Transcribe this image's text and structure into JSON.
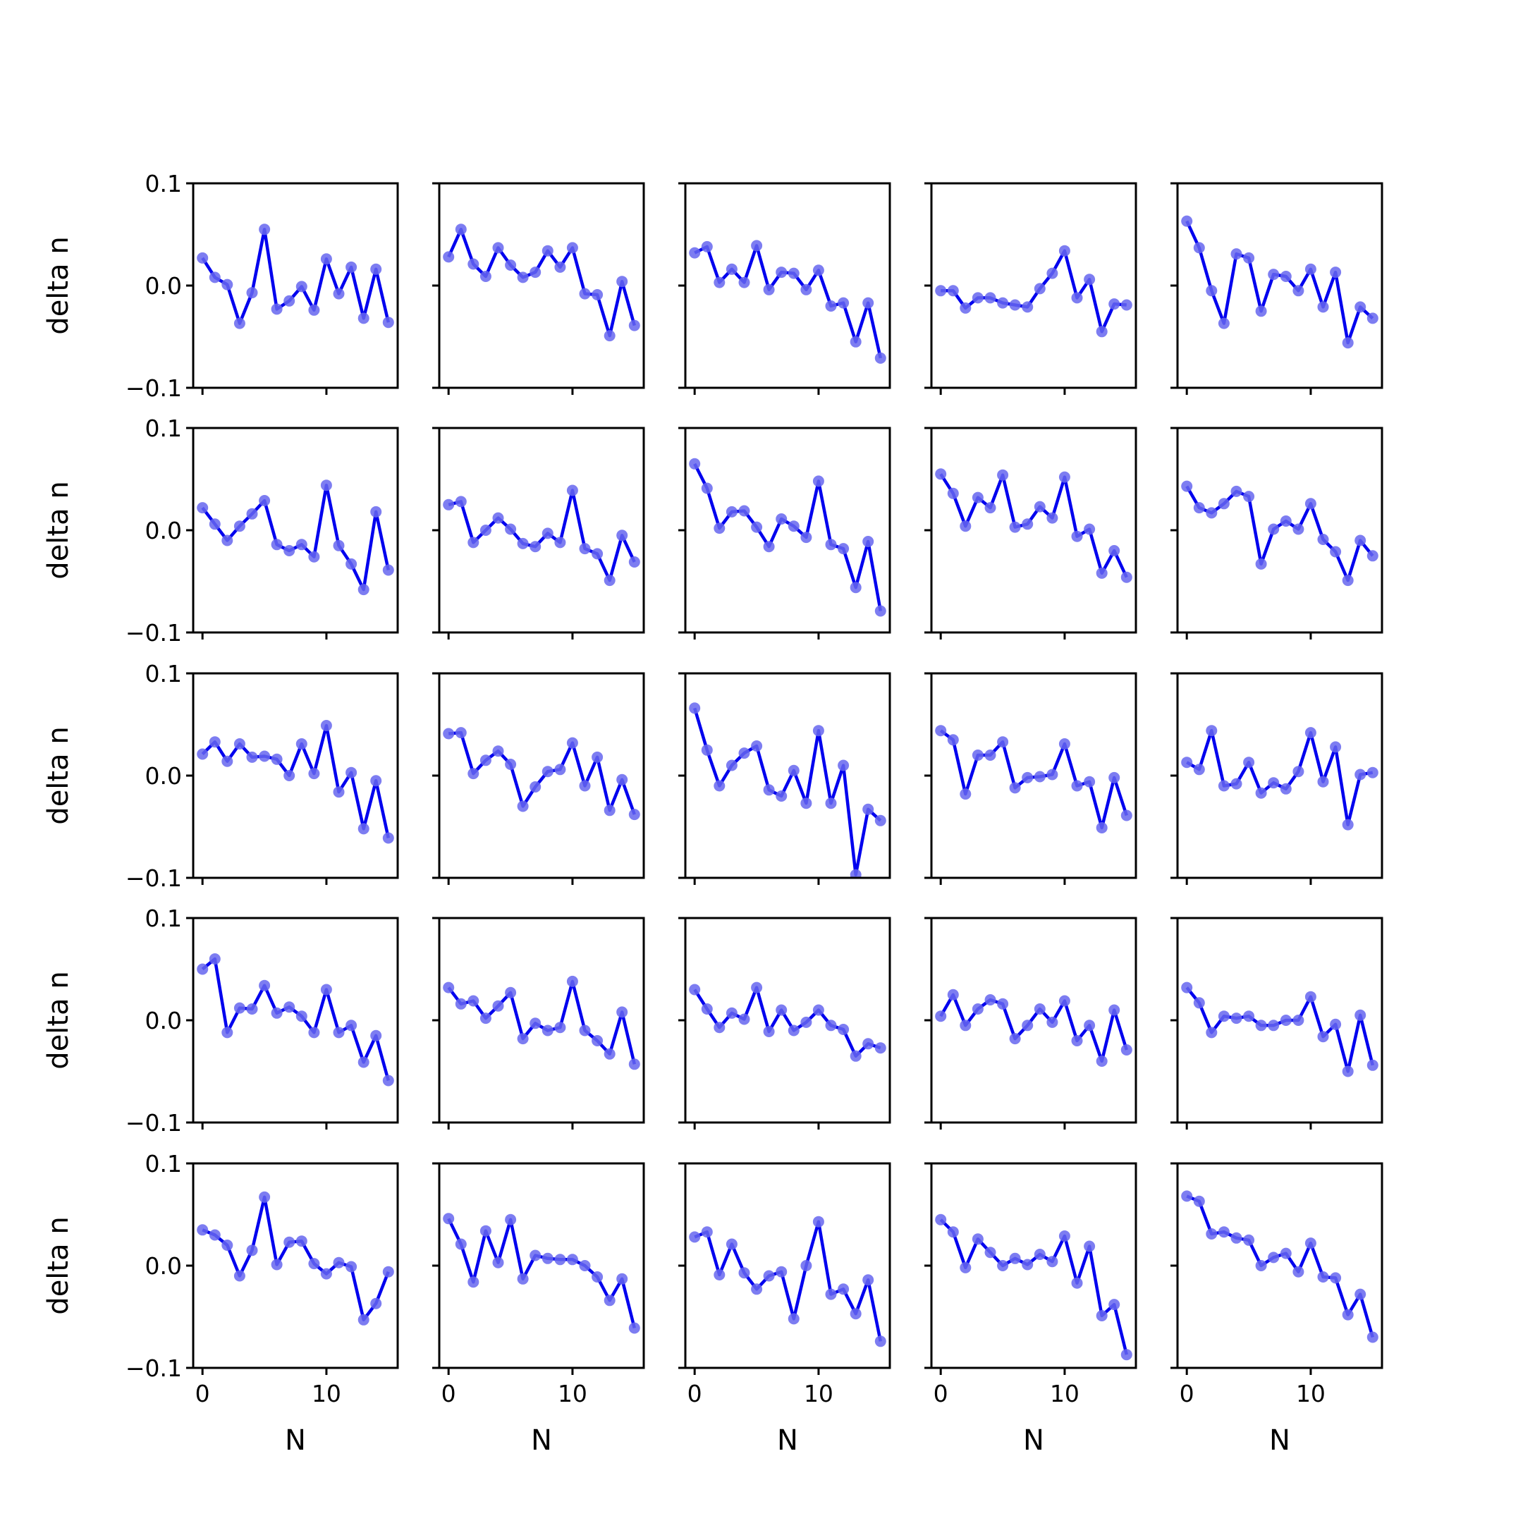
{
  "chart_data": {
    "type": "line",
    "layout": {
      "rows": 5,
      "cols": 5,
      "sharex": true,
      "sharey": true
    },
    "xlabel": "N",
    "ylabel": "delta n",
    "xlim": [
      -0.75,
      15.75
    ],
    "ylim": [
      -0.1,
      0.1
    ],
    "xticks": [
      0,
      10
    ],
    "xtick_labels": [
      "0",
      "10"
    ],
    "yticks": [
      -0.1,
      0.0,
      0.1
    ],
    "ytick_labels": [
      "−0.1",
      "0.0",
      "0.1"
    ],
    "x": [
      0,
      1,
      2,
      3,
      4,
      5,
      6,
      7,
      8,
      9,
      10,
      11,
      12,
      13,
      14,
      15
    ],
    "colors": {
      "line": "#0000ee",
      "marker": "#6666ee"
    },
    "panels": [
      [
        0.027,
        0.008,
        0.001,
        -0.037,
        -0.007,
        0.055,
        -0.023,
        -0.015,
        -0.001,
        -0.024,
        0.026,
        -0.008,
        0.018,
        -0.032,
        0.016,
        -0.036
      ],
      [
        0.028,
        0.055,
        0.021,
        0.009,
        0.037,
        0.02,
        0.008,
        0.013,
        0.034,
        0.018,
        0.037,
        -0.008,
        -0.009,
        -0.049,
        0.004,
        -0.039
      ],
      [
        0.032,
        0.038,
        0.003,
        0.016,
        0.003,
        0.039,
        -0.004,
        0.013,
        0.012,
        -0.004,
        0.015,
        -0.02,
        -0.017,
        -0.055,
        -0.017,
        -0.071
      ],
      [
        -0.005,
        -0.005,
        -0.022,
        -0.012,
        -0.012,
        -0.017,
        -0.019,
        -0.021,
        -0.003,
        0.012,
        0.034,
        -0.012,
        0.006,
        -0.045,
        -0.018,
        -0.019
      ],
      [
        0.063,
        0.037,
        -0.005,
        -0.037,
        0.031,
        0.027,
        -0.025,
        0.011,
        0.009,
        -0.005,
        0.016,
        -0.021,
        0.013,
        -0.056,
        -0.021,
        -0.032
      ],
      [
        0.022,
        0.006,
        -0.01,
        0.004,
        0.016,
        0.029,
        -0.014,
        -0.02,
        -0.014,
        -0.026,
        0.044,
        -0.015,
        -0.033,
        -0.058,
        0.018,
        -0.039
      ],
      [
        0.025,
        0.028,
        -0.012,
        0.0,
        0.012,
        0.001,
        -0.013,
        -0.016,
        -0.003,
        -0.012,
        0.039,
        -0.018,
        -0.023,
        -0.049,
        -0.005,
        -0.031
      ],
      [
        0.065,
        0.041,
        0.002,
        0.018,
        0.019,
        0.003,
        -0.016,
        0.011,
        0.004,
        -0.007,
        0.048,
        -0.014,
        -0.018,
        -0.056,
        -0.011,
        -0.079
      ],
      [
        0.055,
        0.036,
        0.004,
        0.032,
        0.022,
        0.054,
        0.003,
        0.006,
        0.023,
        0.012,
        0.052,
        -0.006,
        0.001,
        -0.042,
        -0.02,
        -0.046
      ],
      [
        0.043,
        0.022,
        0.017,
        0.026,
        0.038,
        0.033,
        -0.033,
        0.001,
        0.009,
        0.001,
        0.026,
        -0.009,
        -0.021,
        -0.049,
        -0.01,
        -0.025
      ],
      [
        0.021,
        0.033,
        0.014,
        0.031,
        0.018,
        0.019,
        0.016,
        0.0,
        0.031,
        0.002,
        0.049,
        -0.016,
        0.003,
        -0.052,
        -0.005,
        -0.061
      ],
      [
        0.041,
        0.042,
        0.002,
        0.015,
        0.024,
        0.011,
        -0.03,
        -0.011,
        0.004,
        0.006,
        0.032,
        -0.01,
        0.018,
        -0.034,
        -0.004,
        -0.038
      ],
      [
        0.066,
        0.025,
        -0.01,
        0.01,
        0.022,
        0.029,
        -0.014,
        -0.02,
        0.005,
        -0.027,
        0.044,
        -0.027,
        0.01,
        -0.097,
        -0.033,
        -0.044
      ],
      [
        0.044,
        0.035,
        -0.018,
        0.02,
        0.02,
        0.033,
        -0.012,
        -0.002,
        -0.001,
        0.001,
        0.031,
        -0.01,
        -0.006,
        -0.051,
        -0.002,
        -0.039
      ],
      [
        0.013,
        0.006,
        0.044,
        -0.01,
        -0.008,
        0.013,
        -0.017,
        -0.007,
        -0.013,
        0.004,
        0.042,
        -0.006,
        0.028,
        -0.048,
        0.001,
        0.003
      ],
      [
        0.05,
        0.06,
        -0.012,
        0.012,
        0.011,
        0.034,
        0.007,
        0.013,
        0.004,
        -0.012,
        0.03,
        -0.012,
        -0.005,
        -0.041,
        -0.015,
        -0.059
      ],
      [
        0.032,
        0.016,
        0.019,
        0.002,
        0.014,
        0.027,
        -0.018,
        -0.003,
        -0.01,
        -0.007,
        0.038,
        -0.01,
        -0.02,
        -0.033,
        0.008,
        -0.043
      ],
      [
        0.03,
        0.011,
        -0.007,
        0.007,
        0.001,
        0.032,
        -0.011,
        0.01,
        -0.01,
        -0.002,
        0.01,
        -0.005,
        -0.009,
        -0.035,
        -0.023,
        -0.027
      ],
      [
        0.004,
        0.025,
        -0.005,
        0.011,
        0.02,
        0.016,
        -0.018,
        -0.005,
        0.011,
        -0.002,
        0.019,
        -0.02,
        -0.005,
        -0.04,
        0.01,
        -0.029
      ],
      [
        0.032,
        0.017,
        -0.012,
        0.004,
        0.002,
        0.004,
        -0.005,
        -0.005,
        0.0,
        0.0,
        0.023,
        -0.016,
        -0.004,
        -0.05,
        0.005,
        -0.044
      ],
      [
        0.035,
        0.03,
        0.02,
        -0.01,
        0.015,
        0.067,
        0.001,
        0.023,
        0.024,
        0.002,
        -0.008,
        0.003,
        -0.001,
        -0.053,
        -0.037,
        -0.006
      ],
      [
        0.046,
        0.021,
        -0.016,
        0.034,
        0.003,
        0.045,
        -0.013,
        0.01,
        0.007,
        0.006,
        0.006,
        0.0,
        -0.011,
        -0.034,
        -0.013,
        -0.061
      ],
      [
        0.028,
        0.033,
        -0.009,
        0.021,
        -0.007,
        -0.023,
        -0.01,
        -0.006,
        -0.052,
        0.0,
        0.043,
        -0.028,
        -0.023,
        -0.047,
        -0.014,
        -0.074
      ],
      [
        0.045,
        0.033,
        -0.002,
        0.026,
        0.013,
        0.0,
        0.007,
        0.001,
        0.011,
        0.004,
        0.029,
        -0.017,
        0.019,
        -0.049,
        -0.038,
        -0.087
      ],
      [
        0.068,
        0.063,
        0.031,
        0.033,
        0.027,
        0.025,
        0.0,
        0.008,
        0.012,
        -0.006,
        0.022,
        -0.011,
        -0.012,
        -0.048,
        -0.028,
        -0.07
      ]
    ]
  }
}
